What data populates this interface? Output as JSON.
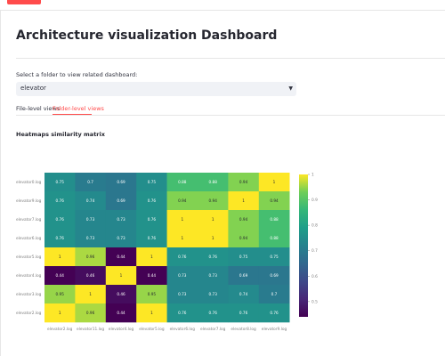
{
  "page": {
    "title": "Architecture visualization Dashboard"
  },
  "folder_select": {
    "label": "Select a folder to view related dashboard:",
    "value": "elevator"
  },
  "tabs": [
    {
      "label": "File-level views",
      "active": false
    },
    {
      "label": "Folder-level views",
      "active": true
    }
  ],
  "heatmap": {
    "title": "Heatmaps similarity matrix"
  },
  "colors": {
    "accent": "#ff4b4b"
  },
  "chart_data": {
    "type": "heatmap",
    "title": "Heatmaps similarity matrix",
    "colormap": "viridis",
    "rows": [
      "elevator0.log",
      "elevator9.log",
      "elevator7.log",
      "elevator6.log",
      "elevator5.log",
      "elevator4.log",
      "elevator3.log",
      "elevator2.log"
    ],
    "columns": [
      "elevator2.log",
      "elevator11.log",
      "elevator4.log",
      "elevator5.log",
      "elevator6.log",
      "elevator7.log",
      "elevator8.log",
      "elevator9.log"
    ],
    "values": [
      [
        0.75,
        0.7,
        0.69,
        0.75,
        0.88,
        0.88,
        0.94,
        1
      ],
      [
        0.76,
        0.74,
        0.69,
        0.76,
        0.94,
        0.94,
        1,
        0.94
      ],
      [
        0.76,
        0.73,
        0.73,
        0.76,
        1,
        1,
        0.94,
        0.88
      ],
      [
        0.76,
        0.73,
        0.73,
        0.76,
        1,
        1,
        0.94,
        0.88
      ],
      [
        1,
        0.96,
        0.44,
        1,
        0.76,
        0.76,
        0.75,
        0.75
      ],
      [
        0.44,
        0.46,
        1,
        0.44,
        0.73,
        0.73,
        0.69,
        0.69
      ],
      [
        0.95,
        1,
        0.46,
        0.95,
        0.73,
        0.73,
        0.74,
        0.7
      ],
      [
        1,
        0.96,
        0.44,
        1,
        0.76,
        0.76,
        0.76,
        0.76
      ]
    ],
    "colorbar": {
      "range": [
        0.44,
        1
      ],
      "ticks": [
        "1",
        "0.9",
        "0.8",
        "0.7",
        "0.6",
        "0.5"
      ]
    }
  }
}
